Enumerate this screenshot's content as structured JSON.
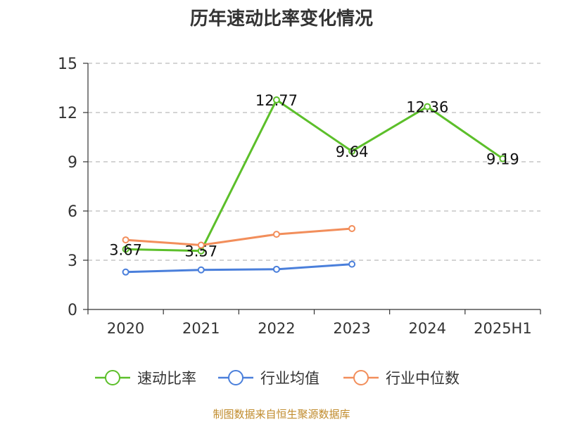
{
  "chart_data": {
    "type": "line",
    "title": "历年速动比率变化情况",
    "categories": [
      "2020",
      "2021",
      "2022",
      "2023",
      "2024",
      "2025H1"
    ],
    "ylim": [
      0,
      15
    ],
    "yticks": [
      0,
      3,
      6,
      9,
      12,
      15
    ],
    "grid": true,
    "legend_position": "bottom",
    "series": [
      {
        "name": "速动比率",
        "color": "#5cbf2a",
        "values": [
          3.67,
          3.57,
          12.77,
          9.64,
          12.36,
          9.19
        ],
        "show_labels": true
      },
      {
        "name": "行业均值",
        "color": "#4a7fdb",
        "values": [
          2.28,
          2.41,
          2.45,
          2.76,
          null,
          null
        ],
        "show_labels": false
      },
      {
        "name": "行业中位数",
        "color": "#f28e5b",
        "values": [
          4.24,
          3.92,
          4.58,
          4.93,
          null,
          null
        ],
        "show_labels": false
      }
    ]
  },
  "source": "制图数据来自恒生聚源数据库"
}
